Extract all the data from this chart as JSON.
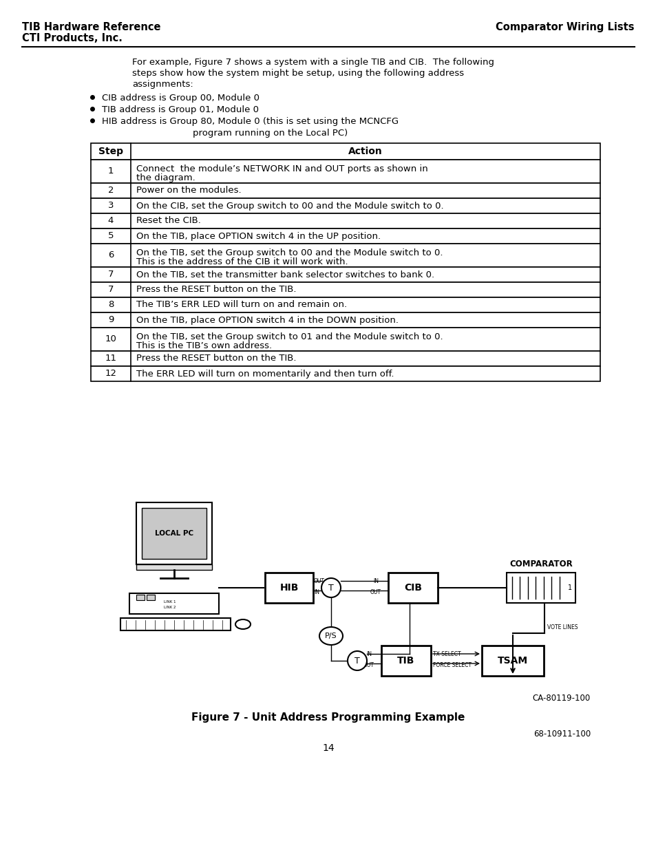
{
  "header_left_line1": "TIB Hardware Reference",
  "header_left_line2": "CTI Products, Inc.",
  "header_right": "Comparator Wiring Lists",
  "bullets": [
    "CIB address is Group 00, Module 0",
    "TIB address is Group 01, Module 0",
    "HIB address is Group 80, Module 0 (this is set using the MCNCFG",
    "program running on the Local PC)"
  ],
  "table_rows": [
    [
      "1",
      "Connect  the module’s NETWORK IN and OUT ports as shown in",
      "the diagram."
    ],
    [
      "2",
      "Power on the modules.",
      ""
    ],
    [
      "3",
      "On the CIB, set the Group switch to 00 and the Module switch to 0.",
      ""
    ],
    [
      "4",
      "Reset the CIB.",
      ""
    ],
    [
      "5",
      "On the TIB, place OPTION switch 4 in the UP position.",
      ""
    ],
    [
      "6",
      "On the TIB, set the Group switch to 00 and the Module switch to 0.",
      "This is the address of the CIB it will work with."
    ],
    [
      "7",
      "On the TIB, set the transmitter bank selector switches to bank 0.",
      ""
    ],
    [
      "7",
      "Press the RESET button on the TIB.",
      ""
    ],
    [
      "8",
      "The TIB’s ERR LED will turn on and remain on.",
      ""
    ],
    [
      "9",
      "On the TIB, place OPTION switch 4 in the DOWN position.",
      ""
    ],
    [
      "10",
      "On the TIB, set the Group switch to 01 and the Module switch to 0.",
      "This is the TIB’s own address."
    ],
    [
      "11",
      "Press the RESET button on the TIB.",
      ""
    ],
    [
      "12",
      "The ERR LED will turn on momentarily and then turn off.",
      ""
    ]
  ],
  "figure_caption": "Figure 7 - Unit Address Programming Example",
  "figure_ref": "CA-80119-100",
  "doc_ref": "68-10911-100",
  "page_number": "14"
}
